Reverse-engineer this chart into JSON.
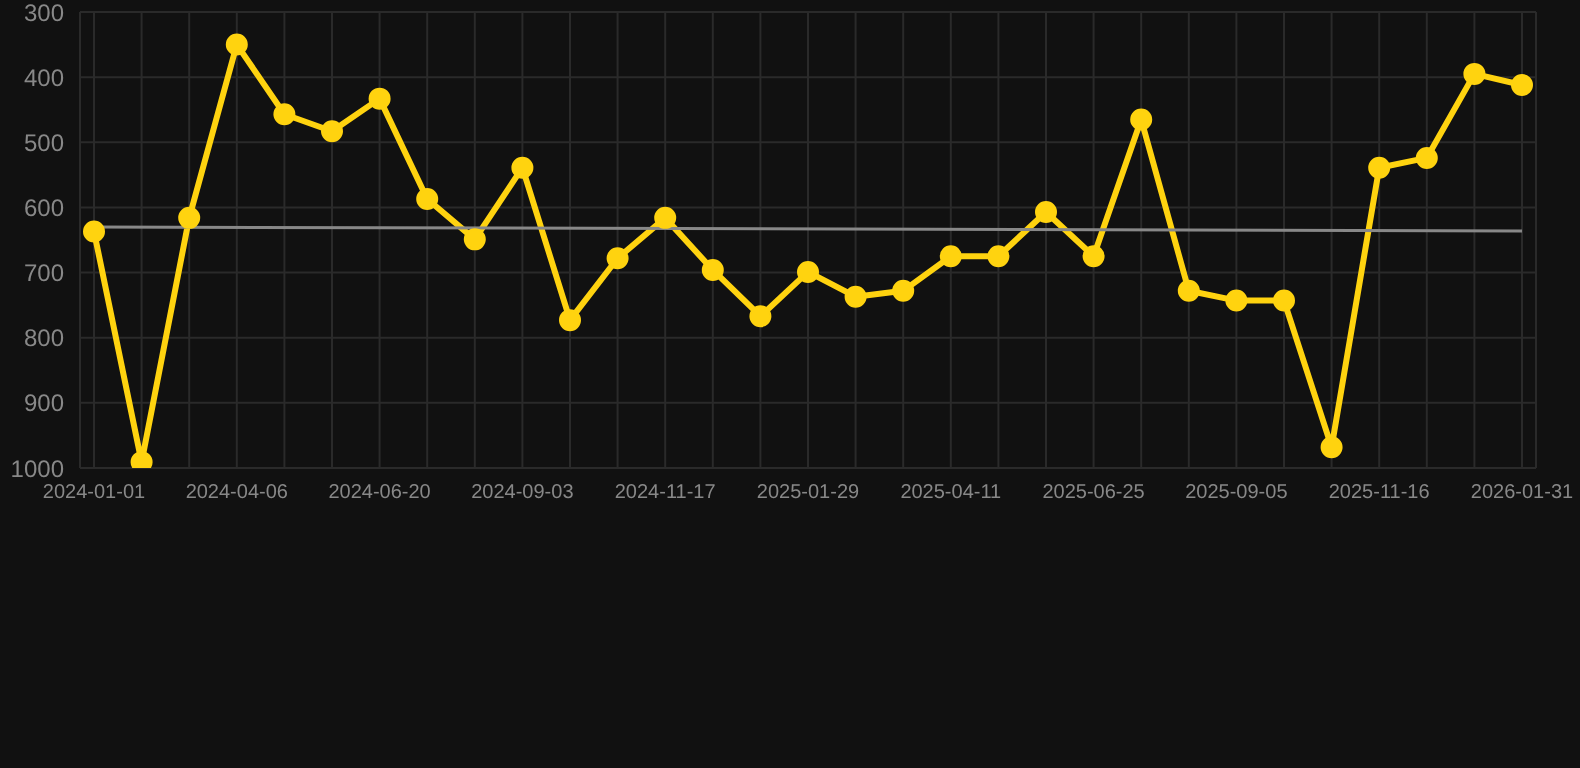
{
  "chart_data": {
    "type": "line",
    "categories": [
      "2024-01-01",
      null,
      null,
      "2024-04-06",
      null,
      null,
      "2024-06-20",
      null,
      null,
      "2024-09-03",
      null,
      null,
      "2024-11-17",
      null,
      null,
      "2025-01-29",
      null,
      null,
      "2025-04-11",
      null,
      null,
      "2025-06-25",
      null,
      null,
      "2025-09-05",
      null,
      null,
      "2025-11-16",
      null,
      null,
      "2026-01-31"
    ],
    "series": [
      {
        "color": "#ffd30f",
        "values": [
          637,
          991,
          616,
          350,
          457,
          483,
          433,
          587,
          649,
          539,
          773,
          678,
          616,
          696,
          767,
          699,
          737,
          728,
          675,
          675,
          607,
          675,
          465,
          728,
          743,
          743,
          968,
          539,
          524,
          395,
          412
        ]
      },
      {
        "type": "line",
        "color": "#888888",
        "marker": "none",
        "values": [
          630,
          null,
          null,
          null,
          null,
          null,
          null,
          null,
          null,
          null,
          null,
          null,
          null,
          null,
          null,
          null,
          null,
          null,
          null,
          null,
          null,
          null,
          null,
          null,
          null,
          null,
          null,
          null,
          null,
          null,
          636
        ]
      }
    ],
    "ylim": [
      1000,
      300
    ],
    "yticks": [
      300,
      400,
      500,
      600,
      700,
      800,
      900,
      1000
    ],
    "grid": true,
    "marker": "circle",
    "line_style": "solid"
  }
}
